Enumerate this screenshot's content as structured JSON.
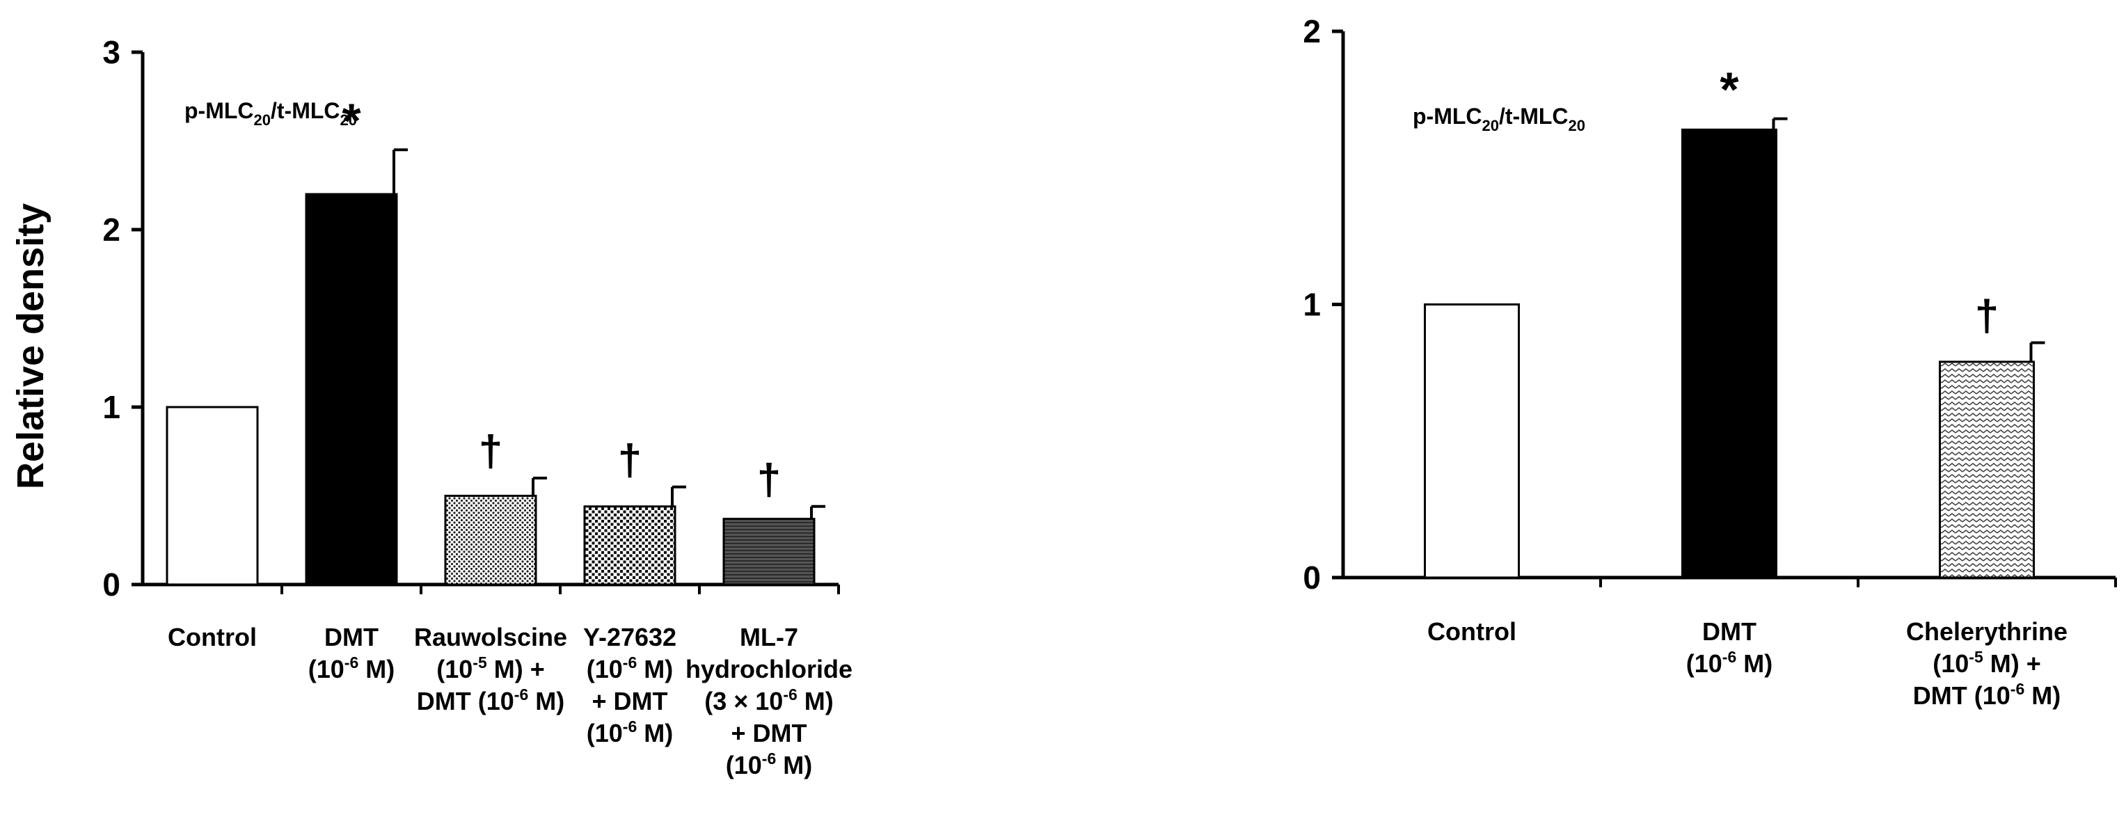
{
  "chart_data": [
    {
      "type": "bar",
      "title": "",
      "annotation": {
        "base": "p-MLC",
        "sub1": "20",
        "sep": "/t-MLC",
        "sub2": "20"
      },
      "ylabel": "Relative density",
      "xlabel": "",
      "ylim": [
        0,
        3
      ],
      "yticks": [
        0,
        1,
        2,
        3
      ],
      "grid": false,
      "categories": [
        "Control",
        "DMT (10-6 M)",
        "Rauwolscine (10-5 M) + DMT (10-6 M)",
        "Y-27632 (10-6 M) + DMT (10-6 M)",
        "ML-7 hydrochloride (3 × 10-6 M) + DMT (10-6 M)"
      ],
      "category_label_lines": [
        [
          {
            "t": "Control"
          }
        ],
        [
          {
            "t": "DMT"
          },
          {
            "t": "(10",
            "sup": "-6",
            "t2": " M)"
          }
        ],
        [
          {
            "t": "Rauwolscine"
          },
          {
            "t": "(10",
            "sup": "-5",
            "t2": " M) +"
          },
          {
            "t": " DMT  (10",
            "sup": "-6",
            "t2": " M)"
          }
        ],
        [
          {
            "t": "Y-27632"
          },
          {
            "t": "(10",
            "sup": "-6",
            "t2": " M)"
          },
          {
            "t": "+ DMT"
          },
          {
            "t": "(10",
            "sup": "-6",
            "t2": " M)"
          }
        ],
        [
          {
            "t": "ML-7"
          },
          {
            "t": "hydrochloride"
          },
          {
            "t": "(3 × 10",
            "sup": "-6",
            "t2": " M)"
          },
          {
            "t": "+ DMT"
          },
          {
            "t": "(10",
            "sup": "-6",
            "t2": " M)"
          }
        ]
      ],
      "values": [
        1.0,
        2.2,
        0.5,
        0.44,
        0.37
      ],
      "errors": [
        0,
        0.25,
        0.1,
        0.11,
        0.07
      ],
      "significance": [
        "",
        "*",
        "†",
        "†",
        "†"
      ],
      "fill_styles": [
        "white",
        "black",
        "dots-fine",
        "dots-coarse",
        "stripes-h"
      ]
    },
    {
      "type": "bar",
      "title": "",
      "annotation": {
        "base": "p-MLC",
        "sub1": "20",
        "sep": "/t-MLC",
        "sub2": "20"
      },
      "ylabel": "",
      "xlabel": "",
      "ylim": [
        0,
        2
      ],
      "yticks": [
        0,
        1,
        2
      ],
      "grid": false,
      "categories": [
        "Control",
        "DMT (10-6 M)",
        "Chelerythrine (10-5 M) + DMT (10-6 M)"
      ],
      "category_label_lines": [
        [
          {
            "t": "Control"
          }
        ],
        [
          {
            "t": "DMT"
          },
          {
            "t": "(10",
            "sup": "-6",
            "t2": " M)"
          }
        ],
        [
          {
            "t": "Chelerythrine"
          },
          {
            "t": "(10",
            "sup": "-5",
            "t2": " M) +"
          },
          {
            "t": " DMT  (10",
            "sup": "-6",
            "t2": " M)"
          }
        ]
      ],
      "values": [
        1.0,
        1.64,
        0.79
      ],
      "errors": [
        0,
        0.04,
        0.07
      ],
      "significance": [
        "",
        "*",
        "†"
      ],
      "fill_styles": [
        "white",
        "black",
        "zigzag"
      ]
    }
  ]
}
